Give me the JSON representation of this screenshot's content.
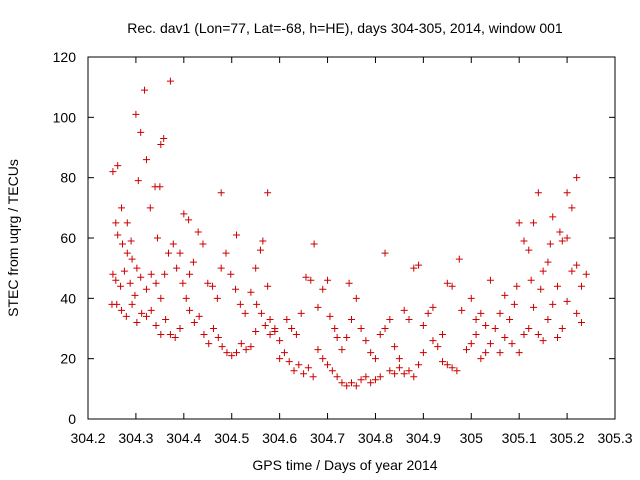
{
  "chart_data": {
    "type": "scatter",
    "title": "Rec. dav1 (Lon=77, Lat=-68, h=HE), days 304-305, 2014, window 001",
    "xlabel": "GPS time / Days of year 2014",
    "ylabel": "STEC from uqrg / TECUs",
    "xlim": [
      304.2,
      305.3
    ],
    "ylim": [
      0,
      120
    ],
    "x_ticks": [
      "304.2",
      "304.3",
      "304.4",
      "304.5",
      "304.6",
      "304.7",
      "304.8",
      "304.9",
      "305",
      "305.1",
      "305.2",
      "305.3"
    ],
    "y_ticks": [
      "0",
      "20",
      "40",
      "60",
      "80",
      "100",
      "120"
    ],
    "grid": false,
    "marker": "plus",
    "color": "#cc0000",
    "series": [
      {
        "points": [
          [
            304.252,
            82
          ],
          [
            304.262,
            84
          ],
          [
            304.27,
            70
          ],
          [
            304.258,
            65
          ],
          [
            304.282,
            65
          ],
          [
            304.29,
            59
          ],
          [
            304.3,
            101
          ],
          [
            304.31,
            95
          ],
          [
            304.318,
            109
          ],
          [
            304.305,
            79
          ],
          [
            304.322,
            86
          ],
          [
            304.34,
            77
          ],
          [
            304.35,
            77
          ],
          [
            304.358,
            93
          ],
          [
            304.352,
            91
          ],
          [
            304.372,
            112
          ],
          [
            304.33,
            70
          ],
          [
            304.345,
            60
          ],
          [
            304.262,
            61
          ],
          [
            304.272,
            58
          ],
          [
            304.282,
            55
          ],
          [
            304.292,
            53
          ],
          [
            304.302,
            50
          ],
          [
            304.252,
            48
          ],
          [
            304.258,
            46
          ],
          [
            304.268,
            44
          ],
          [
            304.276,
            49
          ],
          [
            304.288,
            45
          ],
          [
            304.298,
            41
          ],
          [
            304.31,
            47
          ],
          [
            304.322,
            43
          ],
          [
            304.332,
            48
          ],
          [
            304.342,
            45
          ],
          [
            304.352,
            40
          ],
          [
            304.36,
            48
          ],
          [
            304.25,
            38
          ],
          [
            304.26,
            38
          ],
          [
            304.27,
            36
          ],
          [
            304.28,
            34
          ],
          [
            304.292,
            38
          ],
          [
            304.302,
            32
          ],
          [
            304.312,
            35
          ],
          [
            304.322,
            34
          ],
          [
            304.332,
            36
          ],
          [
            304.342,
            31
          ],
          [
            304.352,
            28
          ],
          [
            304.362,
            33
          ],
          [
            304.372,
            28
          ],
          [
            304.382,
            27
          ],
          [
            304.392,
            30
          ],
          [
            304.385,
            50
          ],
          [
            304.392,
            55
          ],
          [
            304.4,
            68
          ],
          [
            304.41,
            66
          ],
          [
            304.378,
            58
          ],
          [
            304.368,
            55
          ],
          [
            304.398,
            45
          ],
          [
            304.405,
            40
          ],
          [
            304.412,
            48
          ],
          [
            304.42,
            52
          ],
          [
            304.43,
            62
          ],
          [
            304.44,
            58
          ],
          [
            304.412,
            36
          ],
          [
            304.422,
            32
          ],
          [
            304.432,
            34
          ],
          [
            304.442,
            28
          ],
          [
            304.452,
            25
          ],
          [
            304.462,
            30
          ],
          [
            304.472,
            27
          ],
          [
            304.48,
            24
          ],
          [
            304.45,
            45
          ],
          [
            304.46,
            44
          ],
          [
            304.47,
            40
          ],
          [
            304.478,
            50
          ],
          [
            304.488,
            55
          ],
          [
            304.498,
            48
          ],
          [
            304.508,
            43
          ],
          [
            304.518,
            38
          ],
          [
            304.528,
            35
          ],
          [
            304.478,
            75
          ],
          [
            304.51,
            61
          ],
          [
            304.49,
            22
          ],
          [
            304.5,
            21
          ],
          [
            304.51,
            22
          ],
          [
            304.52,
            25
          ],
          [
            304.53,
            23
          ],
          [
            304.54,
            24
          ],
          [
            304.55,
            29
          ],
          [
            304.54,
            42
          ],
          [
            304.55,
            50
          ],
          [
            304.56,
            56
          ],
          [
            304.565,
            59
          ],
          [
            304.575,
            75
          ],
          [
            304.552,
            38
          ],
          [
            304.562,
            35
          ],
          [
            304.575,
            44
          ],
          [
            304.58,
            33
          ],
          [
            304.59,
            29
          ],
          [
            304.6,
            26
          ],
          [
            304.57,
            31
          ],
          [
            304.58,
            28
          ],
          [
            304.59,
            30
          ],
          [
            304.6,
            20
          ],
          [
            304.61,
            22
          ],
          [
            304.62,
            19
          ],
          [
            304.63,
            16
          ],
          [
            304.64,
            18
          ],
          [
            304.65,
            15
          ],
          [
            304.66,
            17
          ],
          [
            304.67,
            14
          ],
          [
            304.615,
            33
          ],
          [
            304.625,
            30
          ],
          [
            304.635,
            28
          ],
          [
            304.645,
            35
          ],
          [
            304.655,
            47
          ],
          [
            304.665,
            46
          ],
          [
            304.672,
            58
          ],
          [
            304.68,
            37
          ],
          [
            304.69,
            43
          ],
          [
            304.7,
            46
          ],
          [
            304.705,
            34
          ],
          [
            304.715,
            30
          ],
          [
            304.72,
            27
          ],
          [
            304.68,
            23
          ],
          [
            304.69,
            20
          ],
          [
            304.7,
            18
          ],
          [
            304.71,
            16
          ],
          [
            304.72,
            14
          ],
          [
            304.73,
            12
          ],
          [
            304.74,
            11
          ],
          [
            304.75,
            12
          ],
          [
            304.76,
            11
          ],
          [
            304.77,
            13
          ],
          [
            304.73,
            23
          ],
          [
            304.74,
            27
          ],
          [
            304.75,
            33
          ],
          [
            304.745,
            45
          ],
          [
            304.76,
            40
          ],
          [
            304.77,
            30
          ],
          [
            304.78,
            26
          ],
          [
            304.79,
            22
          ],
          [
            304.8,
            20
          ],
          [
            304.78,
            14
          ],
          [
            304.79,
            12
          ],
          [
            304.8,
            13
          ],
          [
            304.81,
            14
          ],
          [
            304.82,
            55
          ],
          [
            304.81,
            28
          ],
          [
            304.82,
            30
          ],
          [
            304.83,
            33
          ],
          [
            304.84,
            24
          ],
          [
            304.85,
            20
          ],
          [
            304.86,
            36
          ],
          [
            304.87,
            33
          ],
          [
            304.88,
            50
          ],
          [
            304.89,
            51
          ],
          [
            304.83,
            16
          ],
          [
            304.84,
            15
          ],
          [
            304.85,
            17
          ],
          [
            304.86,
            15
          ],
          [
            304.87,
            16
          ],
          [
            304.88,
            14
          ],
          [
            304.89,
            18
          ],
          [
            304.9,
            22
          ],
          [
            304.9,
            31
          ],
          [
            304.91,
            35
          ],
          [
            304.92,
            37
          ],
          [
            304.92,
            26
          ],
          [
            304.93,
            24
          ],
          [
            304.94,
            28
          ],
          [
            304.95,
            45
          ],
          [
            304.96,
            44
          ],
          [
            304.94,
            19
          ],
          [
            304.95,
            18
          ],
          [
            304.96,
            17
          ],
          [
            304.97,
            16
          ],
          [
            304.975,
            53
          ],
          [
            304.98,
            36
          ],
          [
            304.99,
            23
          ],
          [
            305.0,
            25
          ],
          [
            305.01,
            28
          ],
          [
            305.02,
            20
          ],
          [
            305.0,
            40
          ],
          [
            305.01,
            33
          ],
          [
            305.02,
            35
          ],
          [
            305.03,
            31
          ],
          [
            305.04,
            46
          ],
          [
            305.03,
            22
          ],
          [
            305.04,
            25
          ],
          [
            305.05,
            30
          ],
          [
            305.06,
            35
          ],
          [
            305.07,
            41
          ],
          [
            305.06,
            22
          ],
          [
            305.07,
            27
          ],
          [
            305.08,
            33
          ],
          [
            305.09,
            38
          ],
          [
            305.085,
            25
          ],
          [
            305.095,
            44
          ],
          [
            305.1,
            65
          ],
          [
            305.11,
            59
          ],
          [
            305.12,
            56
          ],
          [
            305.1,
            22
          ],
          [
            305.11,
            28
          ],
          [
            305.12,
            30
          ],
          [
            305.13,
            37
          ],
          [
            305.125,
            46
          ],
          [
            305.14,
            75
          ],
          [
            305.13,
            65
          ],
          [
            305.145,
            43
          ],
          [
            305.15,
            49
          ],
          [
            305.16,
            52
          ],
          [
            305.165,
            58
          ],
          [
            305.14,
            28
          ],
          [
            305.15,
            26
          ],
          [
            305.16,
            33
          ],
          [
            305.17,
            38
          ],
          [
            305.18,
            44
          ],
          [
            305.17,
            67
          ],
          [
            305.185,
            62
          ],
          [
            305.19,
            59
          ],
          [
            305.2,
            60
          ],
          [
            305.21,
            70
          ],
          [
            305.2,
            75
          ],
          [
            305.22,
            80
          ],
          [
            305.18,
            27
          ],
          [
            305.19,
            30
          ],
          [
            305.2,
            39
          ],
          [
            305.21,
            49
          ],
          [
            305.22,
            51
          ],
          [
            305.23,
            44
          ],
          [
            305.23,
            32
          ],
          [
            305.22,
            35
          ],
          [
            305.24,
            48
          ]
        ]
      }
    ]
  }
}
